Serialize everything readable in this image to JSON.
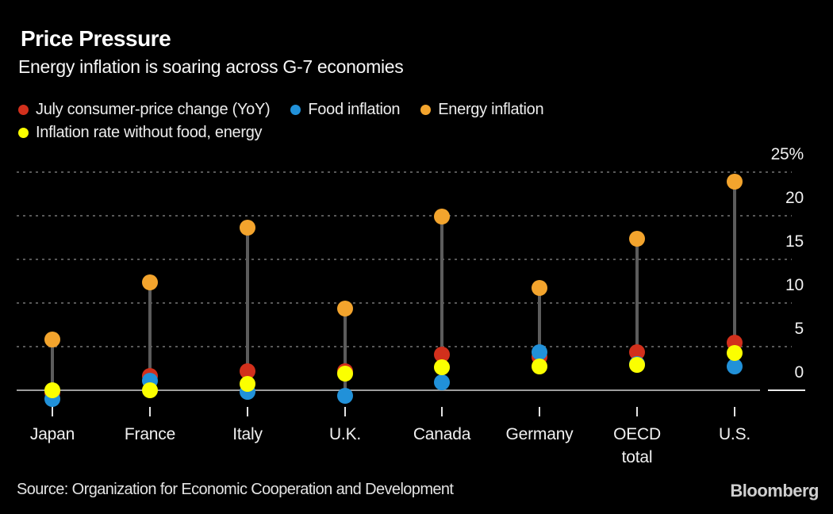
{
  "header": {
    "title": "Price Pressure",
    "subtitle": "Energy inflation is soaring across G-7 economies"
  },
  "legend": {
    "rows": [
      [
        {
          "key": "cpi",
          "label": "July consumer-price change (YoY)",
          "color": "#d2301c"
        },
        {
          "key": "food",
          "label": "Food inflation",
          "color": "#2191d9"
        },
        {
          "key": "energy",
          "label": "Energy inflation",
          "color": "#f3a42d"
        }
      ],
      [
        {
          "key": "core",
          "label": "Inflation rate without food, energy",
          "color": "#fbff00"
        }
      ]
    ]
  },
  "chart_data": {
    "type": "scatter",
    "subtype": "dot-range-plot",
    "title": "Price Pressure",
    "subtitle": "Energy inflation is soaring across G-7 economies",
    "categories": [
      "Japan",
      "France",
      "Italy",
      "U.K.",
      "Canada",
      "Germany",
      "OECD\ntotal",
      "U.S."
    ],
    "series": [
      {
        "key": "cpi",
        "name": "July consumer-price change (YoY)",
        "color": "#d2301c",
        "values": [
          -0.3,
          1.6,
          2.2,
          2.2,
          4.1,
          3.8,
          4.4,
          5.5
        ]
      },
      {
        "key": "food",
        "name": "Food inflation",
        "color": "#2191d9",
        "values": [
          -1.0,
          1.1,
          -0.2,
          -0.6,
          0.9,
          4.4,
          3.0,
          2.7
        ]
      },
      {
        "key": "core",
        "name": "Inflation rate without food, energy",
        "color": "#fbff00",
        "values": [
          0.0,
          0.0,
          0.7,
          1.9,
          2.6,
          2.7,
          2.9,
          4.3
        ]
      },
      {
        "key": "energy",
        "name": "Energy inflation",
        "color": "#f3a42d",
        "values": [
          5.8,
          12.4,
          18.6,
          9.4,
          19.9,
          11.7,
          17.4,
          23.9
        ]
      }
    ],
    "y_axis": {
      "unit": "%",
      "side": "right",
      "grid": "dotted",
      "ylim": [
        -2,
        26
      ],
      "ticks": [
        {
          "label": "25%",
          "value": 25
        },
        {
          "label": "20",
          "value": 20
        },
        {
          "label": "15",
          "value": 15
        },
        {
          "label": "10",
          "value": 10
        },
        {
          "label": "5",
          "value": 5
        },
        {
          "label": "0",
          "value": 0
        }
      ]
    },
    "legend_position": "top",
    "range_bar": "vertical line connects min and max dot per category"
  },
  "footer": {
    "source": "Source: Organization for Economic Cooperation and Development",
    "brand": "Bloomberg"
  },
  "colors": {
    "background": "#000000",
    "cpi": "#d2301c",
    "food": "#2191d9",
    "energy": "#f3a42d",
    "core": "#fbff00",
    "grid": "#585858",
    "zero_line": "#9d9d9d",
    "range_line": "#5c5c5c",
    "text": "#ffffff"
  }
}
